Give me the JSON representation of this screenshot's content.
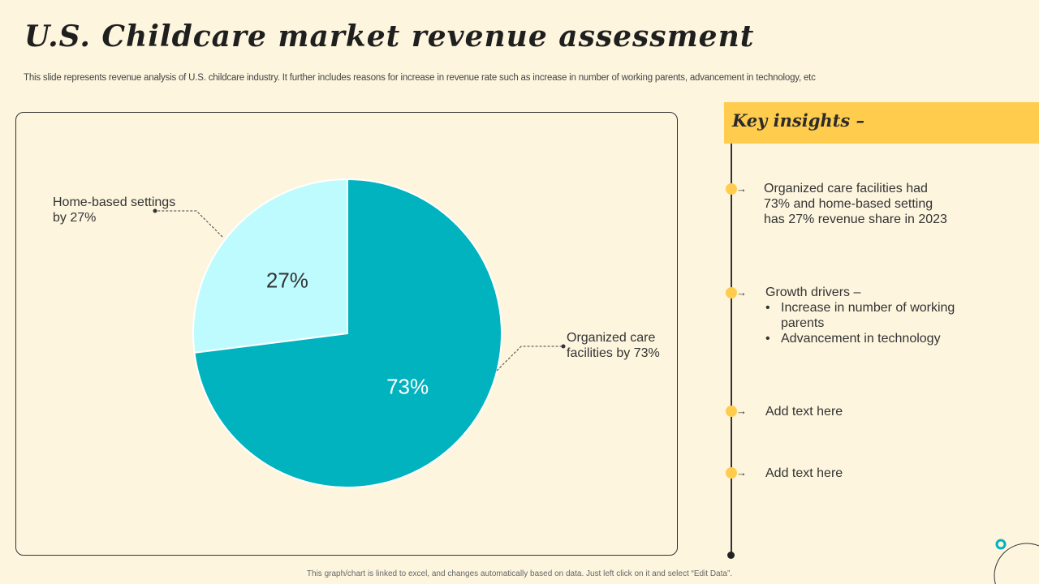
{
  "slide": {
    "title": "U.S. Childcare market revenue assessment",
    "subtitle": "This slide represents revenue analysis of U.S. childcare industry. It further includes reasons for increase in revenue rate such as increase in number of working parents, advancement in technology, etc",
    "footer": "This graph/chart is linked to excel, and changes automatically based on data. Just left click on it and select “Edit Data”."
  },
  "chart_data": {
    "type": "pie",
    "title": "",
    "categories": [
      "Organized care facilities",
      "Home-based settings"
    ],
    "values": [
      73,
      27
    ],
    "slice_labels": [
      "73%",
      "27%"
    ],
    "colors": [
      "#00B3BE",
      "#BEFBFF"
    ],
    "label_colors": [
      "#FFFFFF",
      "#333333"
    ],
    "start_angle": "12 o'clock",
    "direction": "clockwise",
    "annotations": {
      "home_based": "Home-based settings by 27%",
      "organized": "Organized care facilities by 73%"
    }
  },
  "insights": {
    "title": "Key insights –",
    "arrow": "→",
    "item1": "Organized care facilities had 73% and home-based setting has 27% revenue share in 2023",
    "item2_heading": "Growth drivers –",
    "item2_bullets": [
      "Increase in number of working parents",
      "Advancement in technology"
    ],
    "item3": "Add text here",
    "item4": "Add text here"
  },
  "colors": {
    "background": "#FDF5DE",
    "accent": "#FFCC4D",
    "teal": "#00B3BE",
    "light_teal": "#BEFBFF"
  }
}
